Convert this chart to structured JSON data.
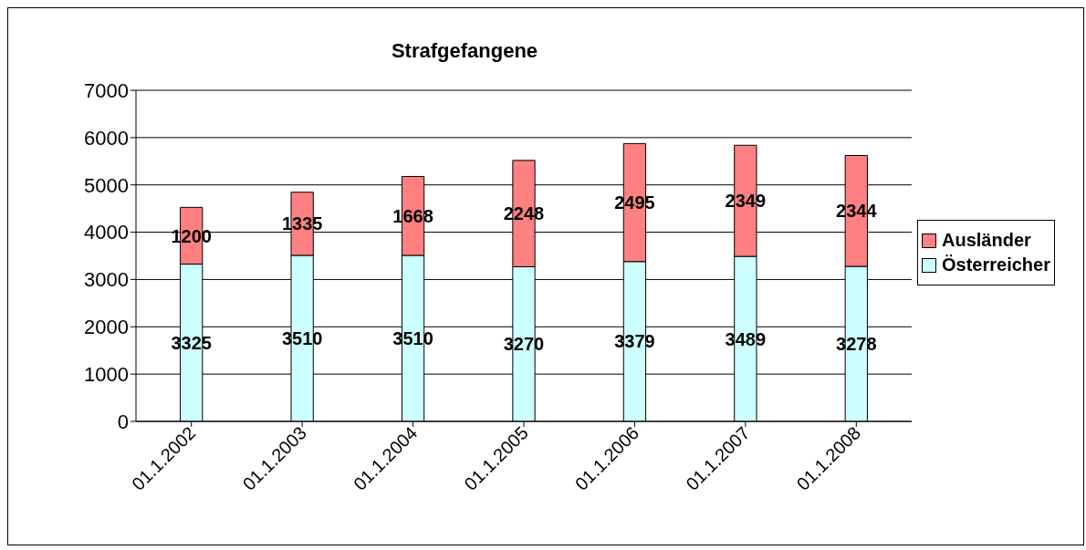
{
  "chart_data": {
    "type": "bar",
    "title": "Strafgefangene",
    "categories": [
      "01.1.2002",
      "01.1.2003",
      "01.1.2004",
      "01.1.2005",
      "01.1.2006",
      "01.1.2007",
      "01.1.2008"
    ],
    "series": [
      {
        "name": "Österreicher",
        "color": "#ccffff",
        "values": [
          3325,
          3510,
          3510,
          3270,
          3379,
          3489,
          3278
        ]
      },
      {
        "name": "Ausländer",
        "color": "#ff8080",
        "values": [
          1200,
          1335,
          1668,
          2248,
          2495,
          2349,
          2344
        ]
      }
    ],
    "stacked": true,
    "ylim": [
      0,
      7000
    ],
    "yticks": [
      0,
      1000,
      2000,
      3000,
      4000,
      5000,
      6000,
      7000
    ],
    "grid": "y",
    "legend": "right",
    "data_labels": true
  }
}
